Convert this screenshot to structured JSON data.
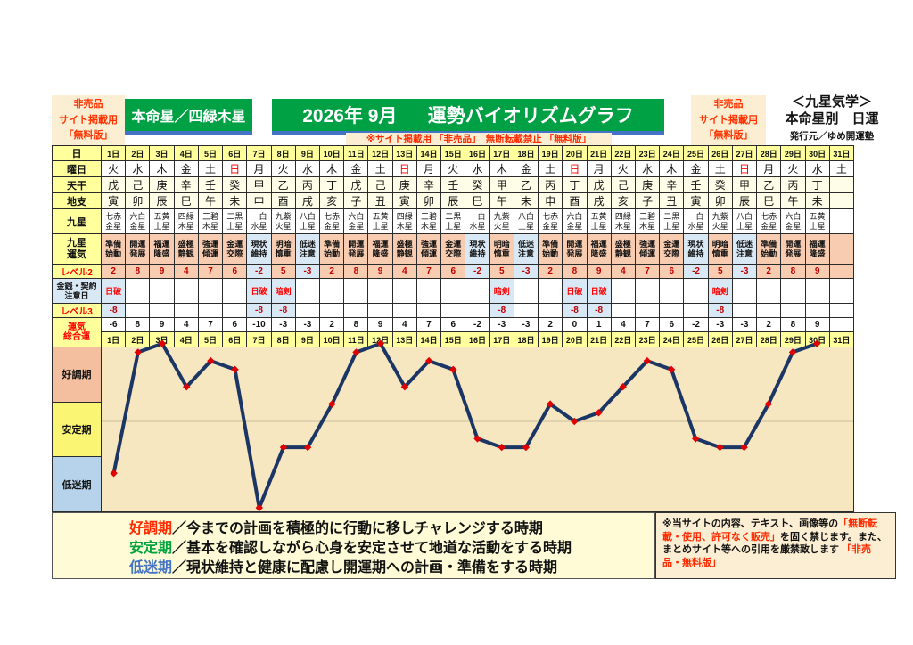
{
  "header": {
    "left_badge_lines": [
      "非売品",
      "サイト掲載用",
      "「無料版」"
    ],
    "honmeisei": "本命星／四緑木星",
    "month_title": "2026年 9月",
    "graph_title": "運勢バイオリズムグラフ",
    "note": "※サイト掲載用 「非売品」　無断転載禁止 「無料版」",
    "right_badge_lines": [
      "非売品",
      "サイト掲載用",
      "「無料版」"
    ],
    "school": "＜九星気学＞",
    "subtitle": "本命星別　日運",
    "publisher": "発行元／ゆめ開運塾"
  },
  "colors": {
    "cell_pink": "#F8CCB0",
    "cell_blue": "#D9E8F5",
    "header_yellow": "#FFFF9C",
    "green": "#00A144",
    "blue_bar": "#4472C4",
    "line_navy": "#1B3665",
    "marker_red": "#E00000"
  },
  "table": {
    "row_labels": {
      "day": "日",
      "weekday": "曜日",
      "tenkan": "天干",
      "chishi": "地支",
      "kyusei": "九星",
      "kyusei_unki": "九星\n運気",
      "level2": "レベル2",
      "caution": "金銭・契約\n注意日",
      "level3": "レベル3",
      "sogo": "運気\n総合運"
    },
    "days": [
      "1日",
      "2日",
      "3日",
      "4日",
      "5日",
      "6日",
      "7日",
      "8日",
      "9日",
      "10日",
      "11日",
      "12日",
      "13日",
      "14日",
      "15日",
      "16日",
      "17日",
      "18日",
      "19日",
      "20日",
      "21日",
      "22日",
      "23日",
      "24日",
      "25日",
      "26日",
      "27日",
      "28日",
      "29日",
      "30日",
      "31日"
    ],
    "weekdays": [
      "火",
      "水",
      "木",
      "金",
      "土",
      "日",
      "月",
      "火",
      "水",
      "木",
      "金",
      "土",
      "日",
      "月",
      "火",
      "水",
      "木",
      "金",
      "土",
      "日",
      "月",
      "火",
      "水",
      "木",
      "金",
      "土",
      "日",
      "月",
      "火",
      "水",
      "土"
    ],
    "tenkan": [
      "戊",
      "己",
      "庚",
      "辛",
      "壬",
      "癸",
      "甲",
      "乙",
      "丙",
      "丁",
      "戊",
      "己",
      "庚",
      "辛",
      "壬",
      "癸",
      "甲",
      "乙",
      "丙",
      "丁",
      "戊",
      "己",
      "庚",
      "辛",
      "壬",
      "癸",
      "甲",
      "乙",
      "丙",
      "丁",
      ""
    ],
    "chishi": [
      "寅",
      "卯",
      "辰",
      "巳",
      "午",
      "未",
      "申",
      "酉",
      "戌",
      "亥",
      "子",
      "丑",
      "寅",
      "卯",
      "辰",
      "巳",
      "午",
      "未",
      "申",
      "酉",
      "戌",
      "亥",
      "子",
      "丑",
      "寅",
      "卯",
      "辰",
      "巳",
      "午",
      "未",
      ""
    ],
    "kyusei": [
      "七赤金星",
      "六白金星",
      "五黄土星",
      "四緑木星",
      "三碧木星",
      "二黒土星",
      "一白水星",
      "九紫火星",
      "八白土星",
      "七赤金星",
      "六白金星",
      "五黄土星",
      "四緑木星",
      "三碧木星",
      "二黒土星",
      "一白水星",
      "九紫火星",
      "八白土星",
      "七赤金星",
      "六白金星",
      "五黄土星",
      "四緑木星",
      "三碧木星",
      "二黒土星",
      "一白水星",
      "九紫火星",
      "八白土星",
      "七赤金星",
      "六白金星",
      "五黄土星",
      ""
    ],
    "kyusei_unki": [
      "準備始動",
      "開運発展",
      "福運隆盛",
      "盛極静観",
      "強運傾運",
      "金運交際",
      "現状維持",
      "明暗慎重",
      "低迷注意",
      "準備始動",
      "開運発展",
      "福運隆盛",
      "盛極静観",
      "強運傾運",
      "金運交際",
      "現状維持",
      "明暗慎重",
      "低迷注意",
      "準備始動",
      "開運発展",
      "福運隆盛",
      "盛極静観",
      "強運傾運",
      "金運交際",
      "現状維持",
      "明暗慎重",
      "低迷注意",
      "準備始動",
      "開運発展",
      "福運隆盛",
      ""
    ],
    "blue_phases": [
      "現状維持",
      "低迷注意"
    ],
    "level2": [
      2,
      8,
      9,
      4,
      7,
      6,
      -2,
      5,
      -3,
      2,
      8,
      9,
      4,
      7,
      6,
      -2,
      5,
      -3,
      2,
      8,
      9,
      4,
      7,
      6,
      -2,
      5,
      -3,
      2,
      8,
      9,
      null
    ],
    "caution": [
      "日破",
      "",
      "",
      "",
      "",
      "",
      "日破",
      "暗剣",
      "",
      "",
      "",
      "",
      "",
      "",
      "",
      "",
      "暗剣",
      "",
      "",
      "日破",
      "日破",
      "",
      "",
      "",
      "",
      "暗剣",
      "",
      "",
      "",
      "",
      ""
    ],
    "level3": [
      -8,
      null,
      null,
      null,
      null,
      null,
      -8,
      -8,
      null,
      null,
      null,
      null,
      null,
      null,
      null,
      null,
      -8,
      null,
      null,
      -8,
      -8,
      null,
      null,
      null,
      null,
      -8,
      null,
      null,
      null,
      null,
      null
    ],
    "sogo": [
      -6,
      8,
      9,
      4,
      7,
      6,
      -10,
      -3,
      -3,
      2,
      8,
      9,
      4,
      7,
      6,
      -2,
      -3,
      -3,
      2,
      0,
      1,
      4,
      7,
      6,
      -2,
      -3,
      -3,
      2,
      8,
      9,
      null
    ]
  },
  "chart_data": {
    "type": "line",
    "title": "運勢バイオリズムグラフ 2026年 9月（四緑木星 日運 総合運レベル）",
    "xlabel": "日",
    "ylabel": "運気総合運",
    "x": [
      1,
      2,
      3,
      4,
      5,
      6,
      7,
      8,
      9,
      10,
      11,
      12,
      13,
      14,
      15,
      16,
      17,
      18,
      19,
      20,
      21,
      22,
      23,
      24,
      25,
      26,
      27,
      28,
      29,
      30
    ],
    "values": [
      -6,
      8,
      9,
      4,
      7,
      6,
      -10,
      -3,
      -3,
      2,
      8,
      9,
      4,
      7,
      6,
      -2,
      -3,
      -3,
      2,
      0,
      1,
      4,
      7,
      6,
      -2,
      -3,
      -3,
      2,
      8,
      9
    ],
    "ylim": [
      -10.5,
      9.5
    ],
    "grid": "single horizontal line at 0",
    "legend_position": "none",
    "zones": [
      {
        "label": "好調期",
        "color": "#F3BF9F"
      },
      {
        "label": "安定期",
        "color": "#FAF573"
      },
      {
        "label": "低迷期",
        "color": "#B7D3EB"
      }
    ]
  },
  "legend": {
    "items": [
      {
        "term": "好調期",
        "color": "#FF2A00",
        "desc": "／今までの計画を積極的に行動に移しチャレンジする時期"
      },
      {
        "term": "安定期",
        "color": "#00A33E",
        "desc": "／基本を確認しながら心身を安定させて地道な活動をする時期"
      },
      {
        "term": "低迷期",
        "color": "#4472C4",
        "desc": "／現状維持と健康に配慮し開運期への計画・準備をする時期"
      }
    ]
  },
  "disclaimer": {
    "segments": [
      {
        "text": "※当サイトの内容、テキスト、画像等の",
        "color": "#111111"
      },
      {
        "text": "「無断転載・使用、許可なく販売」",
        "color": "#FF2A00"
      },
      {
        "text": "を固く禁じます。また、まとめサイト等への引用を厳禁致します ",
        "color": "#111111"
      },
      {
        "text": "「非売品・無料版」",
        "color": "#FF2A00"
      }
    ]
  }
}
